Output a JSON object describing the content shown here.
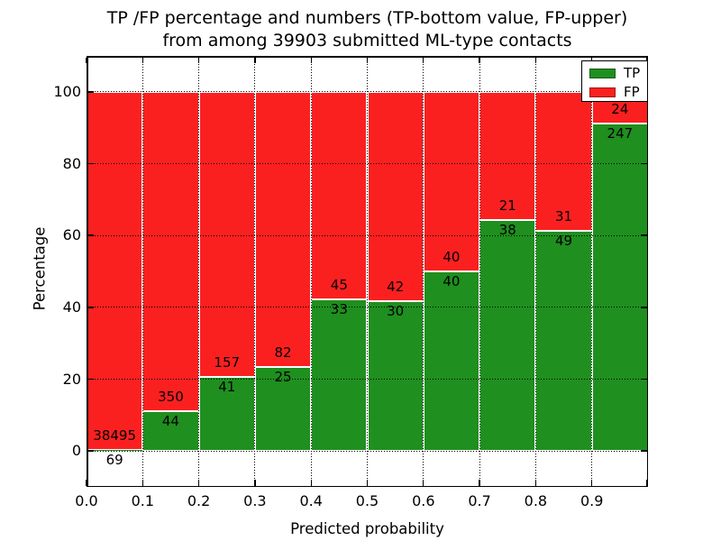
{
  "figure": {
    "title_line1": "TP /FP percentage and numbers (TP-bottom value, FP-upper)",
    "title_line2": "from among 39903 submitted ML-type contacts"
  },
  "chart_data": {
    "type": "bar",
    "variant": "stacked-percentage-histogram",
    "title": "TP /FP percentage and numbers (TP-bottom value, FP-upper)\nfrom among 39903 submitted ML-type contacts",
    "xlabel": "Predicted probability",
    "ylabel": "Percentage",
    "total_submitted": 39903,
    "bin_starts": [
      0.0,
      0.1,
      0.2,
      0.3,
      0.4,
      0.5,
      0.6,
      0.7,
      0.8,
      0.9
    ],
    "bin_width": 0.1,
    "series": [
      {
        "name": "TP",
        "color": "#1f8f1f",
        "counts": [
          69,
          44,
          41,
          25,
          33,
          30,
          40,
          38,
          49,
          247
        ]
      },
      {
        "name": "FP",
        "color": "#fb2020",
        "counts": [
          38495,
          350,
          157,
          82,
          45,
          42,
          40,
          21,
          31,
          24
        ]
      }
    ],
    "tp_percent_of_bin": [
      0.18,
      11.17,
      20.71,
      23.36,
      42.31,
      41.67,
      50.0,
      64.41,
      61.25,
      91.14
    ],
    "bar_edge_color": "#ffffff",
    "xlim": [
      0.0,
      1.0
    ],
    "ylim": [
      -10,
      110
    ],
    "yticks": [
      0,
      20,
      40,
      60,
      80,
      100
    ],
    "xtick_labels": [
      "0.0",
      "0.1",
      "0.2",
      "0.3",
      "0.4",
      "0.5",
      "0.6",
      "0.7",
      "0.8",
      "0.9"
    ],
    "grid": "dotted-black",
    "legend": {
      "position": "upper-right",
      "entries": [
        {
          "label": "TP",
          "color": "#1f8f1f"
        },
        {
          "label": "FP",
          "color": "#fb2020"
        }
      ]
    }
  }
}
